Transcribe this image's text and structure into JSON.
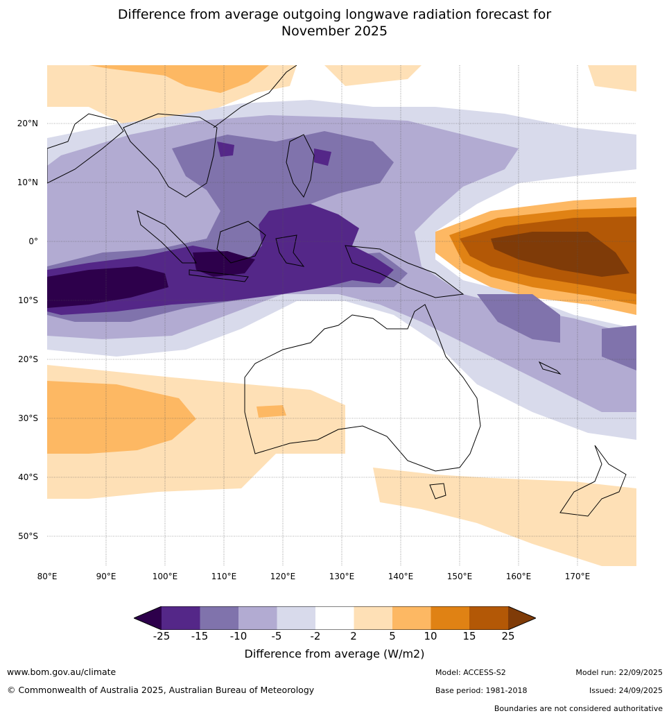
{
  "title": {
    "line1": "Difference from average outgoing longwave radiation forecast for",
    "line2": "November 2025"
  },
  "map": {
    "lat_labels": [
      "20°N",
      "10°N",
      "0°",
      "10°S",
      "20°S",
      "30°S",
      "40°S",
      "50°S"
    ],
    "lon_labels": [
      "80°E",
      "90°E",
      "100°E",
      "110°E",
      "120°E",
      "130°E",
      "140°E",
      "150°E",
      "160°E",
      "170°E"
    ],
    "extent": {
      "lon_min": 80,
      "lon_max": 180,
      "lat_min": -55,
      "lat_max": 30
    }
  },
  "colorbar": {
    "ticks": [
      "-25",
      "-15",
      "-10",
      "-5",
      "-2",
      "2",
      "5",
      "10",
      "15",
      "25"
    ],
    "colors": [
      "#2d004b",
      "#542788",
      "#8073ac",
      "#b2abd2",
      "#d8daeb",
      "#ffffff",
      "#fee0b6",
      "#fdb863",
      "#e08214",
      "#b35806",
      "#7f3b08"
    ],
    "title": "Difference from average (W/m2)"
  },
  "footer": {
    "website": "www.bom.gov.au/climate",
    "copyright": "© Commonwealth of Australia 2025, Australian Bureau of Meteorology",
    "model": "Model: ACCESS-S2",
    "base_period": "Base period: 1981-2018",
    "model_run": "Model run: 22/09/2025",
    "issued": "Issued: 24/09/2025",
    "disclaimer": "Boundaries are not considered authoritative"
  }
}
